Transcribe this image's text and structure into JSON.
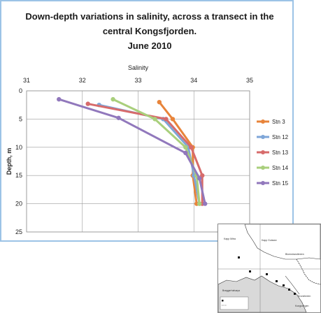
{
  "chart_data": {
    "type": "line",
    "title_lines": [
      "Down-depth variations in salinity, across a transect in the",
      "central Kongsfjorden.",
      "June 2010"
    ],
    "xlabel": "Salinity",
    "ylabel": "Depth, m",
    "xlim": [
      31,
      35
    ],
    "ylim": [
      0,
      25
    ],
    "y_inverted": true,
    "xticks": [
      "31",
      "32",
      "33",
      "34",
      "35"
    ],
    "yticks": [
      "0",
      "5",
      "10",
      "15",
      "20",
      "25"
    ],
    "grid": true,
    "legend_position": "right",
    "series": [
      {
        "name": "Stn 3",
        "color": "#e8843a",
        "points": [
          [
            33.38,
            2
          ],
          [
            33.62,
            5
          ],
          [
            33.98,
            10
          ],
          [
            33.98,
            15
          ],
          [
            34.05,
            20
          ]
        ]
      },
      {
        "name": "Stn 12",
        "color": "#7ea6d8",
        "points": [
          [
            32.3,
            2.5
          ],
          [
            33.45,
            5
          ],
          [
            33.9,
            10
          ],
          [
            34.0,
            15
          ],
          [
            34.1,
            20
          ]
        ]
      },
      {
        "name": "Stn 13",
        "color": "#d76b6b",
        "points": [
          [
            32.1,
            2.3
          ],
          [
            33.5,
            5
          ],
          [
            33.95,
            10
          ],
          [
            34.15,
            15
          ],
          [
            34.15,
            20
          ]
        ]
      },
      {
        "name": "Stn 14",
        "color": "#a9cf7c",
        "points": [
          [
            32.55,
            1.5
          ],
          [
            33.3,
            5
          ],
          [
            33.85,
            10
          ],
          [
            34.05,
            15
          ],
          [
            34.1,
            20
          ]
        ]
      },
      {
        "name": "Stn 15",
        "color": "#9178bc",
        "points": [
          [
            31.58,
            1.5
          ],
          [
            32.65,
            4.8
          ],
          [
            33.85,
            11
          ],
          [
            34.1,
            15.5
          ],
          [
            34.2,
            20
          ]
        ]
      }
    ]
  },
  "inset_map": {
    "labels": [
      "Kapp Mitra",
      "Kapp Guissez",
      "Blomstrandbreen",
      "Kronebreen",
      "Kongsvegen",
      "Brøggerhalvøya"
    ]
  }
}
